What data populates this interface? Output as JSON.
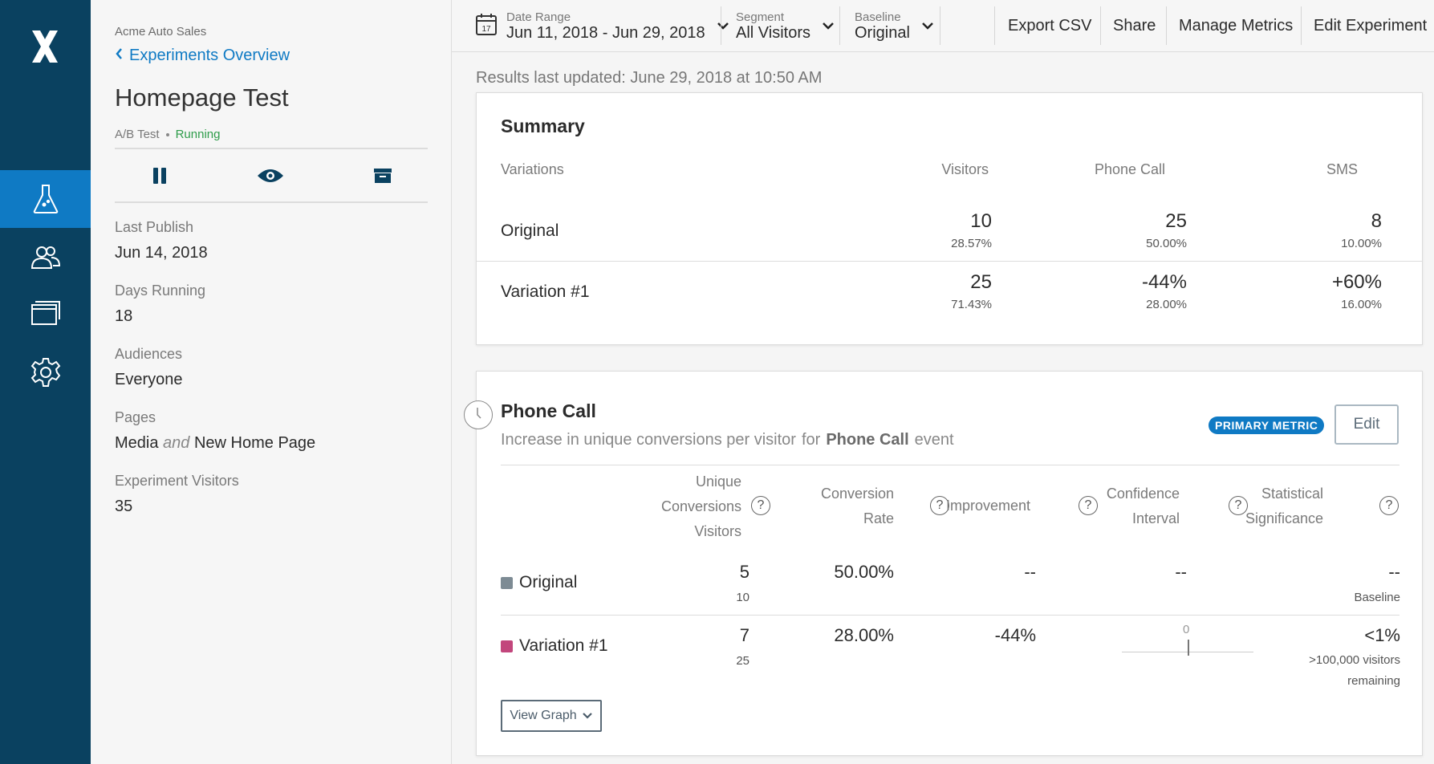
{
  "sidebar": {
    "org": "Acme Auto Sales",
    "back_label": "Experiments Overview",
    "title": "Homepage Test",
    "type": "A/B Test",
    "status": "Running",
    "fields": [
      {
        "label": "Last Publish",
        "value": "Jun 14, 2018"
      },
      {
        "label": "Days Running",
        "value": "18"
      },
      {
        "label": "Audiences",
        "value": "Everyone"
      },
      {
        "label": "Pages",
        "value_a": "Media",
        "value_and": "and",
        "value_b": "New Home Page"
      },
      {
        "label": "Experiment Visitors",
        "value": "35"
      }
    ]
  },
  "toolbar": {
    "date_label": "Date Range",
    "date_value": "Jun 11, 2018 - Jun 29, 2018",
    "calendar_day": "17",
    "segment_label": "Segment",
    "segment_value": "All Visitors",
    "baseline_label": "Baseline",
    "baseline_value": "Original",
    "export": "Export CSV",
    "share": "Share",
    "manage": "Manage Metrics",
    "edit": "Edit Experiment"
  },
  "updated": "Results last updated: June 29, 2018 at 10:50 AM",
  "summary": {
    "title": "Summary",
    "columns": [
      "Variations",
      "Visitors",
      "Phone Call",
      "SMS"
    ],
    "rows": [
      {
        "name": "Original",
        "visitors": "10",
        "visitors_pct": "28.57%",
        "phone": "25",
        "phone_pct": "50.00%",
        "sms": "8",
        "sms_pct": "10.00%"
      },
      {
        "name": "Variation #1",
        "visitors": "25",
        "visitors_pct": "71.43%",
        "phone": "-44%",
        "phone_pct": "28.00%",
        "sms": "+60%",
        "sms_pct": "16.00%"
      }
    ]
  },
  "phone_call": {
    "title": "Phone Call",
    "desc_pre": "Increase in unique conversions per visitor",
    "desc_for": "for",
    "desc_event": "Phone Call",
    "desc_post": "event",
    "badge": "PRIMARY METRIC",
    "edit": "Edit",
    "columns": {
      "unique_1": "Unique",
      "unique_2": "Conversions",
      "unique_3": "Visitors",
      "rate_1": "Conversion",
      "rate_2": "Rate",
      "improvement": "Improvement",
      "ci_1": "Confidence",
      "ci_2": "Interval",
      "sig_1": "Statistical",
      "sig_2": "Significance"
    },
    "help_glyph": "?",
    "rows": [
      {
        "name": "Original",
        "conversions": "5",
        "visitors": "10",
        "rate": "50.00%",
        "improvement": "--",
        "ci": "--",
        "sig": "--",
        "sig_note": "Baseline",
        "color": "#7d8b94"
      },
      {
        "name": "Variation #1",
        "conversions": "7",
        "visitors": "25",
        "rate": "28.00%",
        "improvement": "-44%",
        "ci_zero": "0",
        "sig": "<1%",
        "sig_note_1": ">100,000 visitors",
        "sig_note_2": "remaining",
        "color": "#c2467c"
      }
    ],
    "view_graph": "View Graph"
  }
}
